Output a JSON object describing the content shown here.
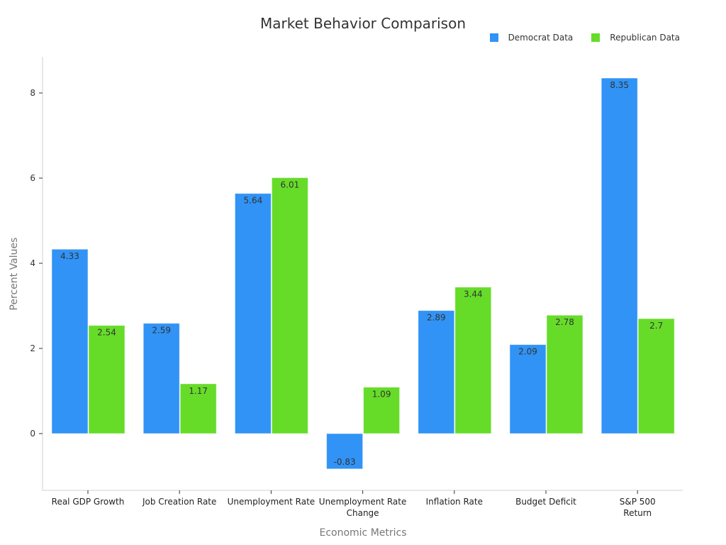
{
  "chart_data": {
    "type": "bar",
    "title": "Market Behavior Comparison",
    "xlabel": "Economic Metrics",
    "ylabel": "Percent Values",
    "categories": [
      "Real GDP Growth",
      "Job Creation Rate",
      "Unemployment Rate",
      "Unemployment Rate\nChange",
      "Inflation Rate",
      "Budget Deficit",
      "S&P 500\nReturn"
    ],
    "series": [
      {
        "name": "Democrat Data",
        "color": "#3193f5",
        "values": [
          4.33,
          2.59,
          5.64,
          -0.83,
          2.89,
          2.09,
          8.35
        ]
      },
      {
        "name": "Republican Data",
        "color": "#66dc29",
        "values": [
          2.54,
          1.17,
          6.01,
          1.09,
          3.44,
          2.78,
          2.7
        ]
      }
    ],
    "yticks": [
      0,
      2,
      4,
      6,
      8
    ],
    "ylim": [
      -1.35,
      8.85
    ],
    "grid": false,
    "legend_position": "top-right"
  }
}
